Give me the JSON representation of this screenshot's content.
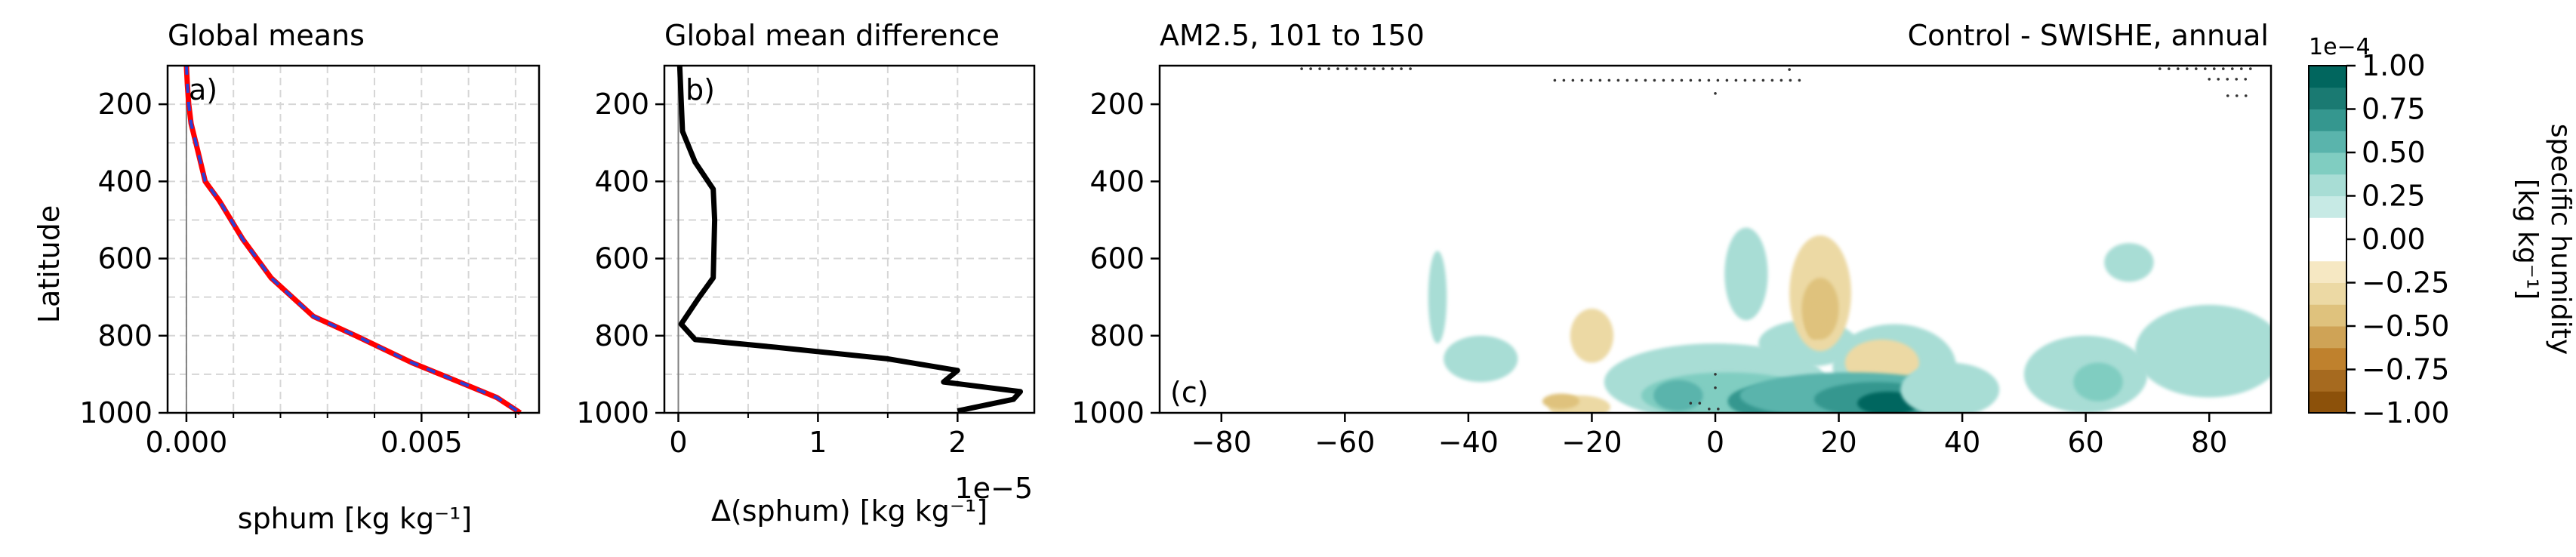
{
  "chart_data": [
    {
      "type": "line",
      "panel": "a",
      "title": "Global means",
      "panel_label": "a)",
      "xlabel": "sphum [kg kg⁻¹]",
      "ylabel": "Latitude",
      "xlim": [
        -0.0004,
        0.0075
      ],
      "ylim": [
        1000,
        100
      ],
      "y_inverted": true,
      "xticks": [
        0.0,
        0.005
      ],
      "xtick_labels": [
        "0.000",
        "0.005"
      ],
      "xminor": [
        0.001,
        0.002,
        0.003,
        0.004,
        0.006,
        0.007
      ],
      "yticks": [
        200,
        400,
        600,
        800,
        1000
      ],
      "ytick_labels": [
        "200",
        "400",
        "600",
        "800",
        "1000"
      ],
      "grid": true,
      "zero_line": true,
      "series": [
        {
          "style": "solid",
          "color": "#ff0000",
          "x": [
            0.0,
            2e-05,
            5e-05,
            0.0001,
            0.0002,
            0.0004,
            0.0007,
            0.0012,
            0.0018,
            0.0027,
            0.0036,
            0.0048,
            0.006,
            0.0066,
            0.0071
          ],
          "y": [
            100,
            150,
            200,
            250,
            300,
            400,
            450,
            550,
            650,
            750,
            800,
            870,
            930,
            960,
            1000
          ]
        },
        {
          "style": "dashed",
          "color": "#2a3fd6",
          "x": [
            0.0,
            2e-05,
            5e-05,
            0.0001,
            0.0002,
            0.0004,
            0.0007,
            0.0012,
            0.0018,
            0.0027,
            0.0036,
            0.0048,
            0.006,
            0.0066,
            0.0071
          ],
          "y": [
            100,
            150,
            200,
            250,
            300,
            400,
            450,
            550,
            650,
            750,
            800,
            870,
            930,
            960,
            1000
          ]
        }
      ]
    },
    {
      "type": "line",
      "panel": "b",
      "title": "Global mean difference",
      "panel_label": "b)",
      "xlabel": "Δ(sphum) [kg kg⁻¹]",
      "offset_label": "1e−5",
      "xlim": [
        -1e-06,
        2.55e-05
      ],
      "ylim": [
        1000,
        100
      ],
      "y_inverted": true,
      "xticks": [
        0,
        1e-05,
        2e-05
      ],
      "xtick_labels": [
        "0",
        "1",
        "2"
      ],
      "xminor": [
        5e-06,
        1.5e-05
      ],
      "yticks": [
        200,
        400,
        600,
        800,
        1000
      ],
      "ytick_labels": [
        "200",
        "400",
        "600",
        "800",
        "1000"
      ],
      "grid": true,
      "zero_line": true,
      "series": [
        {
          "style": "solid",
          "color": "#000000",
          "x": [
            1e-07,
            3e-07,
            1.2e-06,
            2.5e-06,
            2.6e-06,
            2.5e-06,
            1.5e-06,
            2e-07,
            1.2e-06,
            7e-06,
            1.5e-05,
            2e-05,
            1.9e-05,
            2.45e-05,
            2.4e-05,
            2e-05
          ],
          "y": [
            100,
            270,
            350,
            420,
            500,
            650,
            700,
            770,
            810,
            830,
            860,
            890,
            920,
            945,
            965,
            995
          ]
        }
      ]
    },
    {
      "type": "heatmap",
      "panel": "c",
      "title_left": "AM2.5, 101 to 150",
      "title_right": "Control - SWISHE, annual",
      "panel_label": "(c)",
      "xlim": [
        -90,
        90
      ],
      "ylim": [
        1000,
        100
      ],
      "y_inverted": true,
      "xticks": [
        -80,
        -60,
        -40,
        -20,
        0,
        20,
        40,
        60,
        80
      ],
      "xtick_labels": [
        "−80",
        "−60",
        "−40",
        "−20",
        "0",
        "20",
        "40",
        "60",
        "80"
      ],
      "yticks": [
        200,
        400,
        600,
        800,
        1000
      ],
      "ytick_labels": [
        "200",
        "400",
        "600",
        "800",
        "1000"
      ],
      "blobs": [
        {
          "cx": -45,
          "cy": 700,
          "rx": 1.5,
          "ry": 120,
          "v": 0.15
        },
        {
          "cx": -38,
          "cy": 860,
          "rx": 6,
          "ry": 60,
          "v": 0.15
        },
        {
          "cx": -20,
          "cy": 800,
          "rx": 3.5,
          "ry": 70,
          "v": -0.15
        },
        {
          "cx": -22,
          "cy": 985,
          "rx": 5,
          "ry": 30,
          "v": -0.15
        },
        {
          "cx": -25,
          "cy": 970,
          "rx": 3,
          "ry": 20,
          "v": -0.25
        },
        {
          "cx": 5,
          "cy": 640,
          "rx": 3.5,
          "ry": 120,
          "v": 0.15
        },
        {
          "cx": 15,
          "cy": 820,
          "rx": 8,
          "ry": 60,
          "v": 0.15
        },
        {
          "cx": 17,
          "cy": 690,
          "rx": 5,
          "ry": 150,
          "v": -0.15
        },
        {
          "cx": 17,
          "cy": 730,
          "rx": 3,
          "ry": 80,
          "v": -0.25
        },
        {
          "cx": 16,
          "cy": 760,
          "rx": 1.5,
          "ry": 50,
          "v": -0.35
        },
        {
          "cx": 29,
          "cy": 880,
          "rx": 10,
          "ry": 110,
          "v": 0.15
        },
        {
          "cx": 27,
          "cy": 870,
          "rx": 6,
          "ry": 60,
          "v": -0.15
        },
        {
          "cx": 0,
          "cy": 920,
          "rx": 18,
          "ry": 100,
          "v": 0.15
        },
        {
          "cx": 2,
          "cy": 955,
          "rx": 14,
          "ry": 60,
          "v": 0.3
        },
        {
          "cx": -6,
          "cy": 955,
          "rx": 4,
          "ry": 40,
          "v": 0.45
        },
        {
          "cx": 8,
          "cy": 970,
          "rx": 6,
          "ry": 40,
          "v": 0.55
        },
        {
          "cx": 22,
          "cy": 955,
          "rx": 18,
          "ry": 60,
          "v": 0.4
        },
        {
          "cx": 26,
          "cy": 965,
          "rx": 10,
          "ry": 45,
          "v": 0.6
        },
        {
          "cx": 28,
          "cy": 975,
          "rx": 5,
          "ry": 30,
          "v": 0.85
        },
        {
          "cx": 38,
          "cy": 940,
          "rx": 8,
          "ry": 70,
          "v": 0.15
        },
        {
          "cx": 60,
          "cy": 900,
          "rx": 10,
          "ry": 100,
          "v": 0.15
        },
        {
          "cx": 62,
          "cy": 920,
          "rx": 4,
          "ry": 50,
          "v": 0.35
        },
        {
          "cx": 80,
          "cy": 840,
          "rx": 12,
          "ry": 120,
          "v": 0.15
        },
        {
          "cx": 67,
          "cy": 610,
          "rx": 4,
          "ry": 50,
          "v": 0.15
        }
      ],
      "stipple_rows": [
        {
          "x0": -67,
          "x1": -49,
          "y": 108
        },
        {
          "x0": -26,
          "x1": 15,
          "y": 138
        },
        {
          "x0": 0,
          "x1": 0,
          "y": 172
        },
        {
          "x0": 12,
          "x1": 12,
          "y": 110
        },
        {
          "x0": 72,
          "x1": 87,
          "y": 108
        },
        {
          "x0": 80,
          "x1": 87,
          "y": 135
        },
        {
          "x0": 83,
          "x1": 87,
          "y": 178
        },
        {
          "x0": -4,
          "x1": -2,
          "y": 975
        },
        {
          "x0": 0,
          "x1": 1,
          "y": 900
        },
        {
          "x0": 0,
          "x1": 1,
          "y": 935
        },
        {
          "x0": -1,
          "x1": 1,
          "y": 990
        }
      ]
    }
  ],
  "colorbar": {
    "label": "specific humidity\n[kg kg⁻¹]",
    "offset_label": "1e−4",
    "levels": [
      -1.0,
      -0.875,
      -0.75,
      -0.625,
      -0.5,
      -0.375,
      -0.25,
      -0.125,
      0.125,
      0.25,
      0.375,
      0.5,
      0.625,
      0.75,
      0.875,
      1.0
    ],
    "ticks": [
      1.0,
      0.75,
      0.5,
      0.25,
      0.0,
      -0.25,
      -0.5,
      -0.75,
      -1.0
    ],
    "tick_labels": [
      "1.00",
      "0.75",
      "0.50",
      "0.25",
      "0.00",
      "−0.25",
      "−0.50",
      "−0.75",
      "−1.00"
    ],
    "colors_positive": [
      "#c7eae5",
      "#a8ddd5",
      "#80cdc1",
      "#5ab4ac",
      "#35978f",
      "#1a7a72",
      "#01665e",
      "#003c30"
    ],
    "colors_negative": [
      "#f6e8c3",
      "#ecd9a4",
      "#dfc27d",
      "#cfa356",
      "#bf812d",
      "#a66a1f",
      "#8c510a",
      "#543005"
    ]
  }
}
